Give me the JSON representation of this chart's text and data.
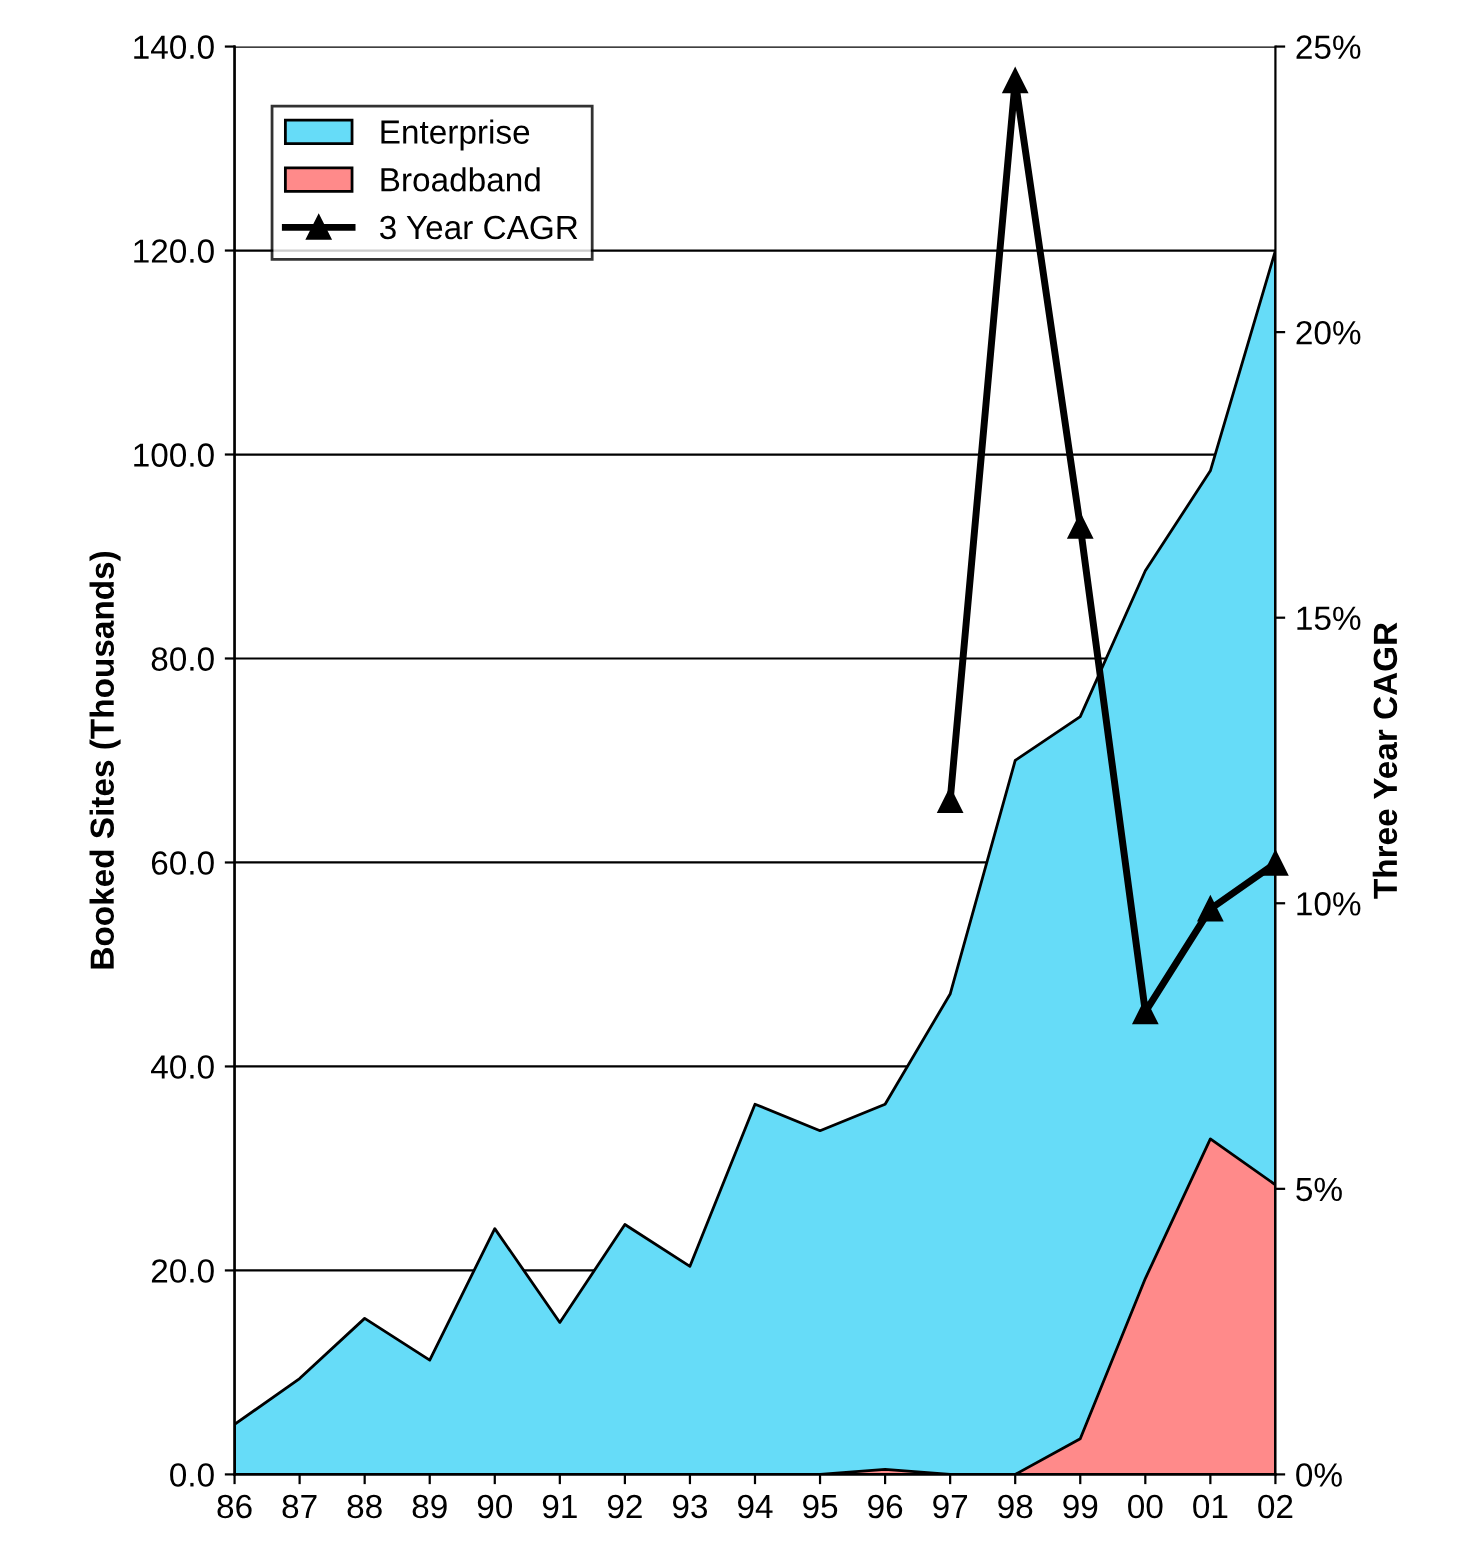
{
  "chart_data": {
    "type": "area",
    "ylabel": "Booked Sites (Thousands)",
    "y2label": "Three Year CAGR",
    "categories": [
      "86",
      "87",
      "88",
      "89",
      "90",
      "91",
      "92",
      "93",
      "94",
      "95",
      "96",
      "97",
      "98",
      "99",
      "00",
      "01",
      "02"
    ],
    "series": [
      {
        "name": "Enterprise",
        "color": "#66dcf8",
        "values": [
          4.9,
          9.4,
          15.3,
          11.2,
          24.1,
          14.9,
          24.5,
          20.4,
          36.3,
          33.7,
          36.3,
          47.1,
          70.0,
          74.3,
          88.6,
          98.4,
          120.0
        ]
      },
      {
        "name": "Broadband",
        "color": "#ff8a8a",
        "values": [
          0,
          0,
          0,
          0,
          0,
          0,
          0,
          0,
          0,
          0,
          0.5,
          0,
          0,
          3.5,
          19.2,
          32.9,
          28.4
        ]
      },
      {
        "name": "3 Year CAGR",
        "type": "line",
        "axis": "y2",
        "color": "#000000",
        "marker": "triangle",
        "values": [
          null,
          null,
          null,
          null,
          null,
          null,
          null,
          null,
          null,
          null,
          null,
          11.8,
          24.4,
          16.6,
          8.1,
          9.9,
          10.7
        ]
      }
    ],
    "ylim": [
      0,
      140
    ],
    "yticks": [
      {
        "value": 0,
        "label": "0.0"
      },
      {
        "value": 20,
        "label": "20.0"
      },
      {
        "value": 40,
        "label": "40.0"
      },
      {
        "value": 60,
        "label": "60.0"
      },
      {
        "value": 80,
        "label": "80.0"
      },
      {
        "value": 100,
        "label": "100.0"
      },
      {
        "value": 120,
        "label": "120.0"
      },
      {
        "value": 140,
        "label": "140.0"
      }
    ],
    "y2lim": [
      0,
      25
    ],
    "y2ticks": [
      {
        "value": 0,
        "label": "0%"
      },
      {
        "value": 5,
        "label": "5%"
      },
      {
        "value": 10,
        "label": "10%"
      },
      {
        "value": 15,
        "label": "15%"
      },
      {
        "value": 20,
        "label": "20%"
      },
      {
        "value": 25,
        "label": "25%"
      }
    ],
    "grid": "y",
    "legend": "top left"
  }
}
